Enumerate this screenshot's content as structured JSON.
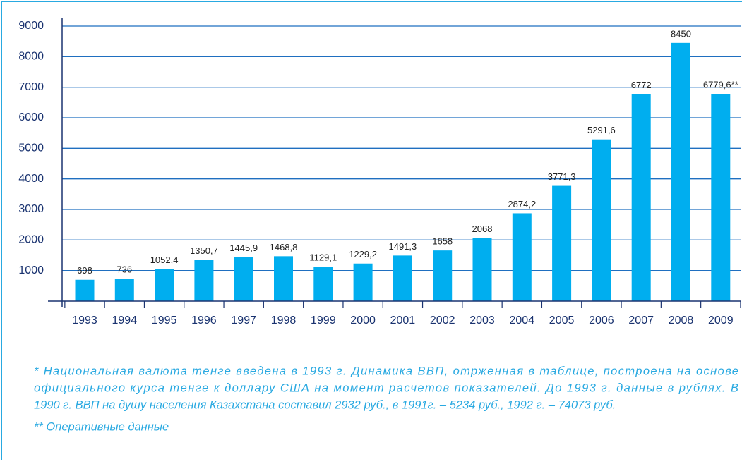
{
  "chart_data": {
    "type": "bar",
    "categories": [
      "1993",
      "1994",
      "1995",
      "1996",
      "1997",
      "1998",
      "1999",
      "2000",
      "2001",
      "2002",
      "2003",
      "2004",
      "2005",
      "2006",
      "2007",
      "2008",
      "2009"
    ],
    "values": [
      698,
      736,
      1052.4,
      1350.7,
      1445.9,
      1468.8,
      1129.1,
      1229.2,
      1491.3,
      1658,
      2068,
      2874.2,
      3771.3,
      5291.6,
      6772,
      8450,
      6779.6
    ],
    "value_labels": [
      "698",
      "736",
      "1052,4",
      "1350,7",
      "1445,9",
      "1468,8",
      "1129,1",
      "1229,2",
      "1491,3",
      "1658",
      "2068",
      "2874,2",
      "3771,3",
      "5291,6",
      "6772",
      "8450",
      "6779,6**"
    ],
    "color": "#00aeef",
    "ylim": [
      0,
      9000
    ],
    "yticks": [
      1000,
      2000,
      3000,
      4000,
      5000,
      6000,
      7000,
      8000,
      9000
    ],
    "grid": true,
    "footnote": [
      "* Национальная валюта тенге введена в 1993 г. Динамика ВВП, отрженная в таблице, построена на основе",
      "официального курса тенге к доллару США на момент расчетов показателей. До 1993 г. данные в рублях. В",
      "1990 г. ВВП на душу населения Казахстана составил 2932 руб., в 1991г. – 5234 руб., 1992 г. – 74073 руб."
    ],
    "footnote2": "** Оперативные данные"
  }
}
